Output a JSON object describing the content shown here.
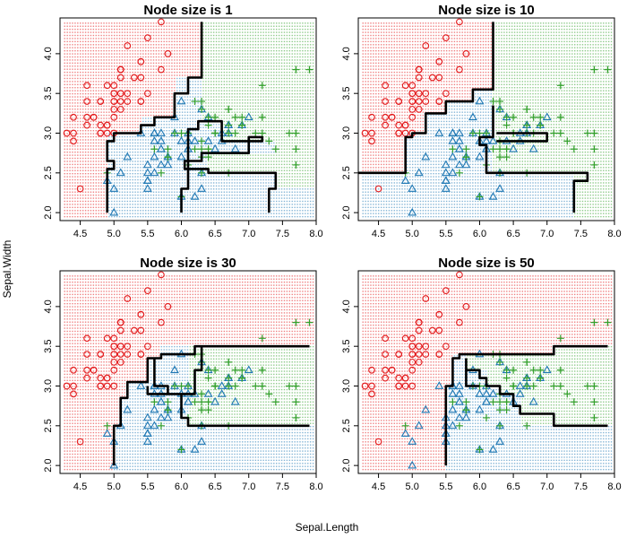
{
  "figure": {
    "xlabel": "Sepal.Length",
    "ylabel": "Sepal.Width"
  },
  "colors": {
    "setosa": "#e31a1c",
    "versicolor": "#1f78b4",
    "virginica": "#33a02c",
    "boundary": "#000000"
  },
  "chart_data": [
    {
      "type": "scatter",
      "title": "Node size is 1",
      "xlim": [
        4.2,
        8.0
      ],
      "ylim": [
        1.9,
        4.45
      ],
      "xticks": [
        "4.5",
        "5.0",
        "5.5",
        "6.0",
        "6.5",
        "7.0",
        "7.5",
        "8.0"
      ],
      "yticks": [
        "2.0",
        "2.5",
        "3.0",
        "3.5",
        "4.0"
      ],
      "background": "class-region grid",
      "boundary": [
        [
          [
            4.9,
            2.0
          ],
          [
            4.9,
            2.55
          ],
          [
            5.0,
            2.55
          ],
          [
            5.0,
            2.65
          ],
          [
            4.9,
            2.65
          ],
          [
            4.9,
            2.9
          ],
          [
            5.0,
            2.9
          ],
          [
            5.0,
            3.0
          ],
          [
            5.4,
            3.0
          ],
          [
            5.4,
            3.1
          ],
          [
            5.6,
            3.1
          ],
          [
            5.6,
            3.2
          ],
          [
            5.9,
            3.2
          ],
          [
            5.9,
            3.5
          ],
          [
            6.1,
            3.5
          ],
          [
            6.1,
            3.7
          ],
          [
            6.3,
            3.7
          ],
          [
            6.3,
            4.4
          ]
        ],
        [
          [
            6.0,
            2.0
          ],
          [
            6.0,
            2.3
          ],
          [
            6.1,
            2.3
          ],
          [
            6.1,
            3.05
          ],
          [
            6.25,
            3.05
          ],
          [
            6.25,
            3.15
          ],
          [
            6.6,
            3.15
          ],
          [
            6.6,
            2.9
          ],
          [
            7.2,
            2.9
          ],
          [
            7.2,
            2.95
          ],
          [
            7.0,
            2.95
          ],
          [
            7.0,
            2.75
          ],
          [
            6.3,
            2.75
          ],
          [
            6.3,
            2.65
          ],
          [
            6.05,
            2.65
          ],
          [
            6.05,
            2.55
          ],
          [
            6.4,
            2.55
          ],
          [
            6.4,
            2.5
          ],
          [
            7.4,
            2.5
          ],
          [
            7.4,
            2.3
          ],
          [
            7.3,
            2.3
          ],
          [
            7.3,
            2.0
          ]
        ]
      ]
    },
    {
      "type": "scatter",
      "title": "Node size is 10",
      "xlim": [
        4.2,
        8.0
      ],
      "ylim": [
        1.9,
        4.45
      ],
      "xticks": [
        "4.5",
        "5.0",
        "5.5",
        "6.0",
        "6.5",
        "7.0",
        "7.5",
        "8.0"
      ],
      "yticks": [
        "2.0",
        "2.5",
        "3.0",
        "3.5",
        "4.0"
      ],
      "background": "class-region grid",
      "boundary": [
        [
          [
            4.2,
            2.5
          ],
          [
            4.9,
            2.5
          ],
          [
            4.9,
            2.95
          ],
          [
            5.0,
            2.95
          ],
          [
            5.0,
            3.0
          ],
          [
            5.2,
            3.0
          ],
          [
            5.2,
            3.25
          ],
          [
            5.5,
            3.25
          ],
          [
            5.5,
            3.4
          ],
          [
            5.9,
            3.4
          ],
          [
            5.9,
            3.55
          ],
          [
            6.2,
            3.55
          ],
          [
            6.2,
            4.4
          ]
        ],
        [
          [
            6.2,
            3.35
          ],
          [
            6.2,
            2.95
          ],
          [
            6.0,
            2.95
          ],
          [
            6.0,
            2.85
          ],
          [
            6.1,
            2.85
          ],
          [
            6.1,
            2.5
          ],
          [
            7.6,
            2.5
          ],
          [
            7.6,
            2.4
          ],
          [
            7.4,
            2.4
          ],
          [
            7.4,
            2.0
          ]
        ],
        [
          [
            6.25,
            3.0
          ],
          [
            7.0,
            3.0
          ],
          [
            7.0,
            2.9
          ],
          [
            6.25,
            2.9
          ]
        ]
      ]
    },
    {
      "type": "scatter",
      "title": "Node size is 30",
      "xlim": [
        4.2,
        8.0
      ],
      "ylim": [
        1.9,
        4.45
      ],
      "xticks": [
        "4.5",
        "5.0",
        "5.5",
        "6.0",
        "6.5",
        "7.0",
        "7.5",
        "8.0"
      ],
      "yticks": [
        "2.0",
        "2.5",
        "3.0",
        "3.5",
        "4.0"
      ],
      "background": "class-region grid",
      "boundary": [
        [
          [
            5.0,
            2.0
          ],
          [
            5.0,
            2.5
          ],
          [
            5.1,
            2.5
          ],
          [
            5.1,
            2.85
          ],
          [
            5.2,
            2.85
          ],
          [
            5.2,
            3.05
          ],
          [
            5.5,
            3.05
          ],
          [
            5.5,
            3.35
          ],
          [
            5.7,
            3.35
          ],
          [
            5.7,
            3.4
          ],
          [
            6.2,
            3.4
          ],
          [
            6.2,
            3.5
          ],
          [
            7.9,
            3.5
          ]
        ],
        [
          [
            5.6,
            3.35
          ],
          [
            5.6,
            3.0
          ],
          [
            5.8,
            3.0
          ],
          [
            5.8,
            2.9
          ],
          [
            6.2,
            2.9
          ],
          [
            6.2,
            3.2
          ],
          [
            6.3,
            3.2
          ],
          [
            6.3,
            3.5
          ]
        ],
        [
          [
            5.5,
            3.0
          ],
          [
            5.5,
            2.9
          ],
          [
            5.8,
            2.9
          ]
        ],
        [
          [
            6.0,
            2.9
          ],
          [
            6.0,
            2.6
          ],
          [
            6.1,
            2.6
          ],
          [
            6.1,
            2.5
          ],
          [
            7.9,
            2.5
          ]
        ]
      ]
    },
    {
      "type": "scatter",
      "title": "Node size is 50",
      "xlim": [
        4.2,
        8.0
      ],
      "ylim": [
        1.9,
        4.45
      ],
      "xticks": [
        "4.5",
        "5.0",
        "5.5",
        "6.0",
        "6.5",
        "7.0",
        "7.5",
        "8.0"
      ],
      "yticks": [
        "2.0",
        "2.5",
        "3.0",
        "3.5",
        "4.0"
      ],
      "background": "class-region grid",
      "boundary": [
        [
          [
            5.5,
            2.0
          ],
          [
            5.5,
            3.0
          ],
          [
            5.6,
            3.0
          ],
          [
            5.6,
            3.35
          ],
          [
            5.7,
            3.35
          ],
          [
            5.7,
            3.4
          ],
          [
            7.1,
            3.4
          ],
          [
            7.1,
            3.5
          ],
          [
            7.9,
            3.5
          ]
        ],
        [
          [
            5.8,
            3.35
          ],
          [
            5.8,
            3.2
          ],
          [
            6.0,
            3.2
          ],
          [
            6.0,
            3.1
          ],
          [
            6.1,
            3.1
          ],
          [
            6.1,
            3.0
          ],
          [
            6.3,
            3.0
          ],
          [
            6.3,
            2.9
          ],
          [
            6.5,
            2.9
          ],
          [
            6.5,
            2.75
          ],
          [
            6.6,
            2.75
          ],
          [
            6.6,
            2.65
          ],
          [
            7.1,
            2.65
          ],
          [
            7.1,
            2.5
          ],
          [
            7.9,
            2.5
          ]
        ],
        [
          [
            5.8,
            3.2
          ],
          [
            5.8,
            3.0
          ],
          [
            6.0,
            3.0
          ]
        ]
      ]
    }
  ]
}
